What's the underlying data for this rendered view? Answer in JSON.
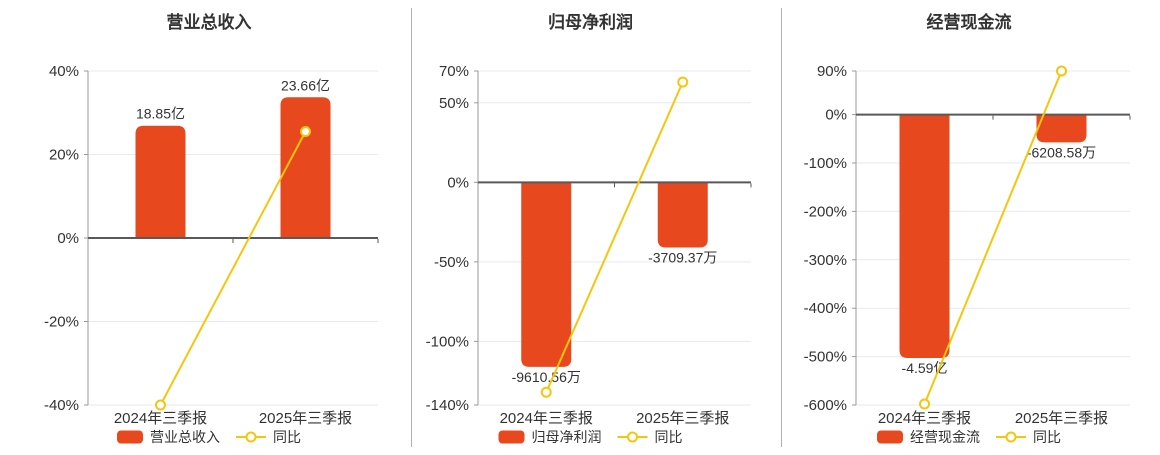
{
  "colors": {
    "bar": "#e8481e",
    "line": "#f5c60d",
    "marker_fill": "#ffffff",
    "grid": "#e7e9f1",
    "zero_axis": "#595959",
    "y_axis": "#999999",
    "text": "#333333",
    "separator": "#b1b1b1",
    "background": "#ffffff"
  },
  "chart_data": [
    {
      "type": "bar",
      "title": "营业总收入",
      "categories": [
        "2024年三季报",
        "2025年三季报"
      ],
      "series": [
        {
          "name": "营业总收入",
          "type": "bar",
          "value_labels": [
            "18.85亿",
            "23.66亿"
          ],
          "display_axis_pct": [
            26.9,
            33.7
          ]
        },
        {
          "name": "同比",
          "type": "line",
          "values_pct": [
            -40,
            25.5
          ]
        }
      ],
      "y_ticks": [
        40,
        20,
        0,
        -20,
        -40
      ],
      "y_tick_labels": [
        "40%",
        "20%",
        "0%",
        "-20%",
        "-40%"
      ],
      "ylim": [
        -40,
        40
      ],
      "grid": true,
      "legend": [
        "营业总收入",
        "同比"
      ],
      "legend_position": "bottom"
    },
    {
      "type": "bar",
      "title": "归母净利润",
      "categories": [
        "2024年三季报",
        "2025年三季报"
      ],
      "series": [
        {
          "name": "归母净利润",
          "type": "bar",
          "value_labels": [
            "-9610.56万",
            "-3709.37万"
          ],
          "display_axis_pct": [
            -116,
            -41
          ]
        },
        {
          "name": "同比",
          "type": "line",
          "values_pct": [
            -132,
            63
          ]
        }
      ],
      "y_ticks": [
        70,
        50,
        0,
        -50,
        -100,
        -140
      ],
      "y_tick_labels": [
        "70%",
        "50%",
        "0%",
        "-50%",
        "-100%",
        "-140%"
      ],
      "ylim": [
        -140,
        70
      ],
      "grid": true,
      "legend": [
        "归母净利润",
        "同比"
      ],
      "legend_position": "bottom"
    },
    {
      "type": "bar",
      "title": "经营现金流",
      "categories": [
        "2024年三季报",
        "2025年三季报"
      ],
      "series": [
        {
          "name": "经营现金流",
          "type": "bar",
          "value_labels": [
            "-4.59亿",
            "-6208.58万"
          ],
          "display_axis_pct": [
            -503,
            -57.5
          ]
        },
        {
          "name": "同比",
          "type": "line",
          "values_pct": [
            -598,
            90
          ]
        }
      ],
      "y_ticks": [
        90,
        0,
        -100,
        -200,
        -300,
        -400,
        -500,
        -600
      ],
      "y_tick_labels": [
        "90%",
        "0%",
        "-100%",
        "-200%",
        "-300%",
        "-400%",
        "-500%",
        "-600%"
      ],
      "ylim": [
        -600,
        90
      ],
      "grid": true,
      "legend": [
        "经营现金流",
        "同比"
      ],
      "legend_position": "bottom"
    }
  ]
}
